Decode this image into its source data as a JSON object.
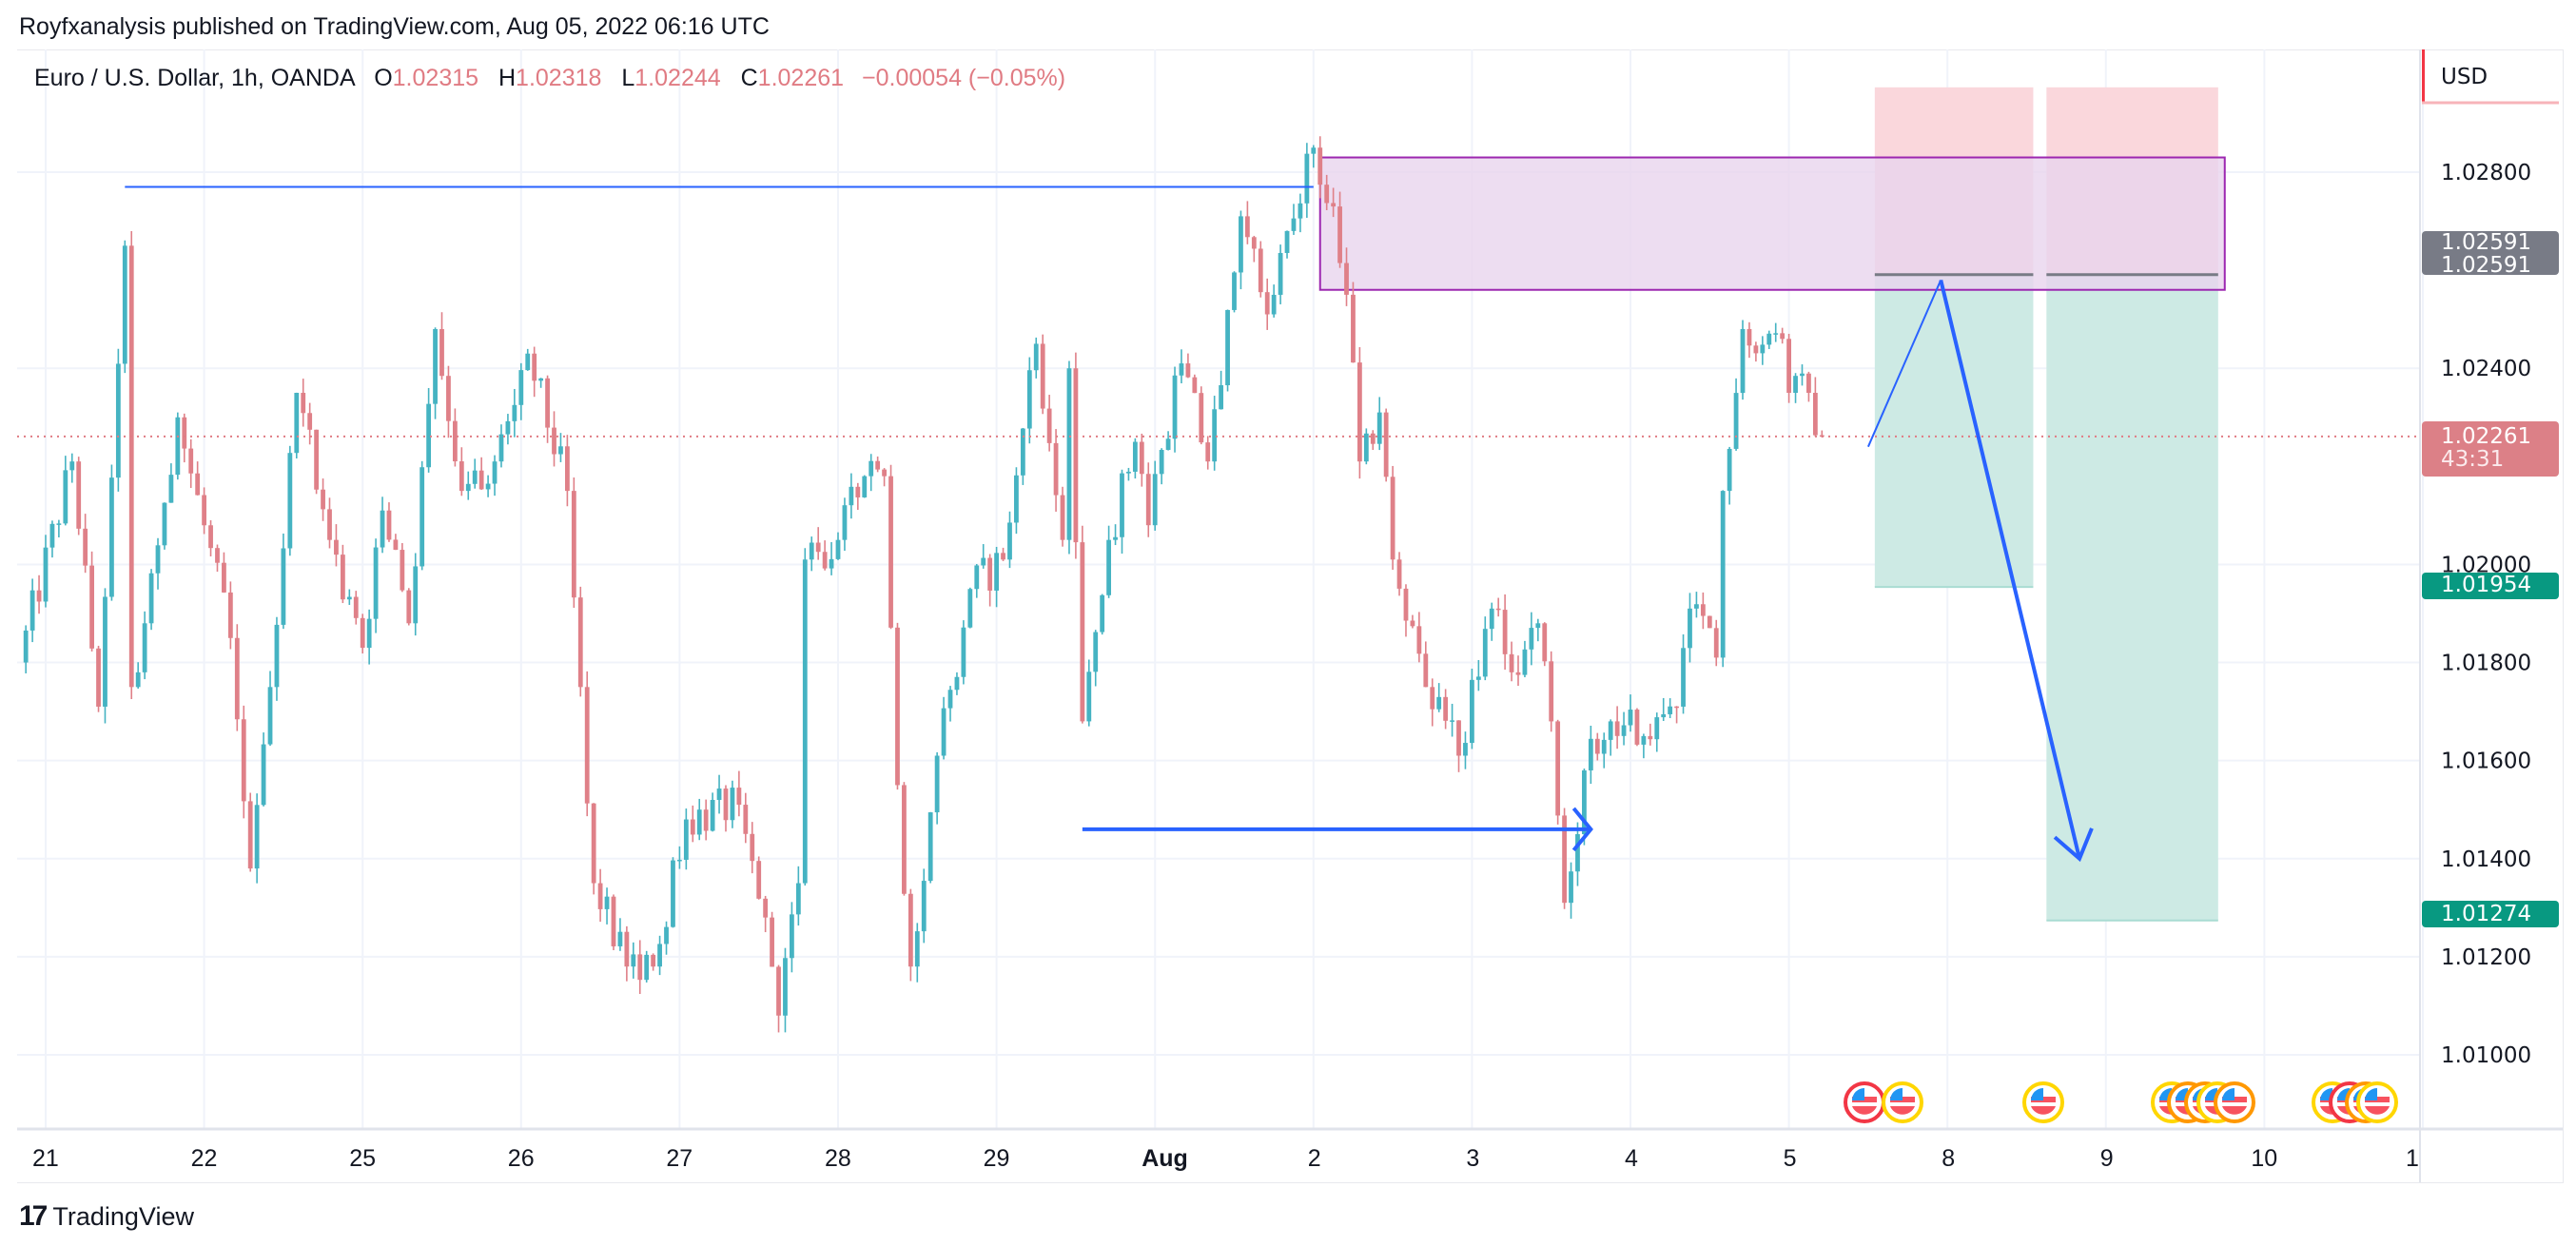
{
  "header": {
    "published": "Royfxanalysis published on TradingView.com, Aug 05, 2022 06:16 UTC"
  },
  "legend": {
    "symbol": "Euro / U.S. Dollar, 1h, OANDA",
    "o_label": "O",
    "o": "1.02315",
    "h_label": "H",
    "h": "1.02318",
    "l_label": "L",
    "l": "1.02244",
    "c_label": "C",
    "c": "1.02261",
    "change": "−0.00054 (−0.05%)"
  },
  "price_axis": {
    "currency": "USD",
    "ticks": [
      "1.02800",
      "1.02400",
      "1.02000",
      "1.01800",
      "1.01600",
      "1.01400",
      "1.01200",
      "1.01000"
    ],
    "tick_values": [
      1.028,
      1.024,
      1.02,
      1.018,
      1.016,
      1.014,
      1.012,
      1.01
    ],
    "badges": [
      {
        "text": "1.02591",
        "value": 1.02591,
        "color": "#787b86"
      },
      {
        "text": "1.02591",
        "value": 1.02591,
        "color": "#787b86"
      },
      {
        "text": "1.02261",
        "sub": "43:31",
        "value": 1.02261,
        "color": "#dc8087"
      },
      {
        "text": "1.01954",
        "value": 1.01954,
        "color": "#089981"
      },
      {
        "text": "1.01274",
        "value": 1.01274,
        "color": "#089981"
      }
    ]
  },
  "footer": {
    "brand": "TradingView"
  },
  "chart_data": {
    "type": "candlestick",
    "title": "Euro / U.S. Dollar, 1h, OANDA",
    "interval": "1h",
    "ylim": [
      1.009,
      1.03
    ],
    "grid": true,
    "colors": {
      "up": "#45b3c2",
      "down": "#df8088",
      "last_price_line": "#e07b83"
    },
    "x_ticks": [
      {
        "label": "21",
        "date": "2022-07-21"
      },
      {
        "label": "22",
        "date": "2022-07-22"
      },
      {
        "label": "25",
        "date": "2022-07-25"
      },
      {
        "label": "26",
        "date": "2022-07-26"
      },
      {
        "label": "27",
        "date": "2022-07-27"
      },
      {
        "label": "28",
        "date": "2022-07-28"
      },
      {
        "label": "29",
        "date": "2022-07-29"
      },
      {
        "label": "Aug",
        "date": "2022-08-01"
      },
      {
        "label": "2",
        "date": "2022-08-02"
      },
      {
        "label": "3",
        "date": "2022-08-03"
      },
      {
        "label": "4",
        "date": "2022-08-04"
      },
      {
        "label": "5",
        "date": "2022-08-05"
      },
      {
        "label": "8",
        "date": "2022-08-08"
      },
      {
        "label": "9",
        "date": "2022-08-09"
      },
      {
        "label": "10",
        "date": "2022-08-10"
      },
      {
        "label": "1",
        "date": "2022-08-11"
      }
    ],
    "close_path": [
      [
        "2022-07-20 20:00",
        1.018
      ],
      [
        "2022-07-21 04:00",
        1.0221
      ],
      [
        "2022-07-21 08:00",
        1.0171
      ],
      [
        "2022-07-21 12:00",
        1.0265
      ],
      [
        "2022-07-21 13:00",
        1.0175
      ],
      [
        "2022-07-21 15:00",
        1.0188
      ],
      [
        "2022-07-21 20:00",
        1.023
      ],
      [
        "2022-07-22 04:00",
        1.0185
      ],
      [
        "2022-07-22 07:00",
        1.0138
      ],
      [
        "2022-07-22 10:00",
        1.0175
      ],
      [
        "2022-07-22 14:00",
        1.0235
      ],
      [
        "2022-07-22 19:00",
        1.0205
      ],
      [
        "2022-07-25 00:00",
        1.0183
      ],
      [
        "2022-07-25 03:00",
        1.0211
      ],
      [
        "2022-07-25 07:00",
        1.0188
      ],
      [
        "2022-07-25 11:00",
        1.0248
      ],
      [
        "2022-07-25 15:00",
        1.0215
      ],
      [
        "2022-07-25 20:00",
        1.0221
      ],
      [
        "2022-07-26 01:00",
        1.0243
      ],
      [
        "2022-07-26 07:00",
        1.0215
      ],
      [
        "2022-07-26 09:00",
        1.0175
      ],
      [
        "2022-07-26 11:00",
        1.0135
      ],
      [
        "2022-07-26 16:00",
        1.0118
      ],
      [
        "2022-07-26 20:00",
        1.0118
      ],
      [
        "2022-07-27 01:00",
        1.0148
      ],
      [
        "2022-07-27 09:00",
        1.0151
      ],
      [
        "2022-07-27 13:00",
        1.0128
      ],
      [
        "2022-07-27 15:00",
        1.0108
      ],
      [
        "2022-07-27 18:00",
        1.0135
      ],
      [
        "2022-07-27 19:00",
        1.0201
      ],
      [
        "2022-07-28 00:00",
        1.0205
      ],
      [
        "2022-07-28 04:00",
        1.0218
      ],
      [
        "2022-07-28 07:00",
        1.0218
      ],
      [
        "2022-07-28 09:00",
        1.0155
      ],
      [
        "2022-07-28 11:00",
        1.0118
      ],
      [
        "2022-07-28 15:00",
        1.0161
      ],
      [
        "2022-07-28 20:00",
        1.0195
      ],
      [
        "2022-07-29 01:00",
        1.0201
      ],
      [
        "2022-07-29 06:00",
        1.0245
      ],
      [
        "2022-07-29 10:00",
        1.0205
      ],
      [
        "2022-07-29 11:00",
        1.024
      ],
      [
        "2022-07-29 13:00",
        1.0168
      ],
      [
        "2022-07-29 17:00",
        1.0205
      ],
      [
        "2022-07-29 21:00",
        1.0225
      ],
      [
        "2022-07-29 23:00",
        1.0208
      ],
      [
        "2022-08-01 04:00",
        1.0241
      ],
      [
        "2022-08-01 08:00",
        1.0221
      ],
      [
        "2022-08-01 13:00",
        1.0271
      ],
      [
        "2022-08-01 17:00",
        1.0251
      ],
      [
        "2022-08-01 20:00",
        1.0268
      ],
      [
        "2022-08-02 00:00",
        1.0285
      ],
      [
        "2022-08-02 03:00",
        1.0273
      ],
      [
        "2022-08-02 05:00",
        1.0255
      ],
      [
        "2022-08-02 07:00",
        1.0221
      ],
      [
        "2022-08-02 10:00",
        1.0231
      ],
      [
        "2022-08-02 12:00",
        1.0201
      ],
      [
        "2022-08-02 17:00",
        1.0175
      ],
      [
        "2022-08-02 22:00",
        1.0161
      ],
      [
        "2022-08-03 03:00",
        1.0191
      ],
      [
        "2022-08-03 06:00",
        1.0178
      ],
      [
        "2022-08-03 10:00",
        1.0188
      ],
      [
        "2022-08-03 12:00",
        1.0168
      ],
      [
        "2022-08-03 14:00",
        1.0131
      ],
      [
        "2022-08-03 17:00",
        1.0158
      ],
      [
        "2022-08-03 21:00",
        1.0168
      ],
      [
        "2022-08-04 02:00",
        1.0165
      ],
      [
        "2022-08-04 07:00",
        1.0171
      ],
      [
        "2022-08-04 09:00",
        1.0191
      ],
      [
        "2022-08-04 13:00",
        1.0181
      ],
      [
        "2022-08-04 14:00",
        1.0215
      ],
      [
        "2022-08-04 17:00",
        1.0248
      ],
      [
        "2022-08-04 23:00",
        1.0246
      ],
      [
        "2022-08-05 00:00",
        1.0235
      ],
      [
        "2022-08-05 03:00",
        1.0235
      ],
      [
        "2022-08-05 05:00",
        1.02261
      ]
    ],
    "last_price": 1.02261,
    "drawings": {
      "resistance_line": {
        "color": "#2962ff",
        "price": 1.0277,
        "from": "2022-07-21 12:00",
        "to": "2022-08-02 00:00"
      },
      "support_arrow": {
        "color": "#2962ff",
        "price": 1.0146,
        "from": "2022-07-29 13:00",
        "to": "2022-08-03 18:00"
      },
      "supply_zone": {
        "fill": "#e9d4ee",
        "border": "#9c27b0",
        "top": 1.0283,
        "bottom": 1.0256,
        "from": "2022-08-02 01:00",
        "to": "2022-08-09 18:00"
      },
      "short_positions": [
        {
          "entry": 1.02591,
          "stop": 1.02973,
          "target": 1.01954,
          "from": "2022-08-05 13:00",
          "to": "2022-08-08 13:00"
        },
        {
          "entry": 1.02591,
          "stop": 1.02973,
          "target": 1.01274,
          "from": "2022-08-08 15:00",
          "to": "2022-08-09 17:00"
        }
      ],
      "projection_path": {
        "color": "#2962ff",
        "points": [
          [
            "2022-08-05 12:00",
            1.0224
          ],
          [
            "2022-08-05 23:00",
            1.0258
          ],
          [
            "2022-08-08 20:00",
            1.014
          ]
        ]
      }
    },
    "events": [
      {
        "icon": "us-flag-icon",
        "ring": "#f23645"
      },
      {
        "icon": "us-flag-icon",
        "ring": "#ffd600"
      },
      {
        "icon": "us-flag-icon",
        "ring": "#ffd600"
      },
      {
        "icon": "us-flag-icon",
        "ring": "#ffd600"
      },
      {
        "icon": "us-flag-icon",
        "ring": "#ff9800"
      },
      {
        "icon": "us-flag-icon",
        "ring": "#ff9800"
      },
      {
        "icon": "us-flag-icon",
        "ring": "#ffd600"
      },
      {
        "icon": "us-flag-icon",
        "ring": "#ff9800"
      },
      {
        "icon": "us-flag-icon",
        "ring": "#ffd600"
      },
      {
        "icon": "us-flag-icon",
        "ring": "#f23645"
      },
      {
        "icon": "us-flag-icon",
        "ring": "#ff9800"
      },
      {
        "icon": "us-flag-icon",
        "ring": "#ffd600"
      }
    ]
  }
}
